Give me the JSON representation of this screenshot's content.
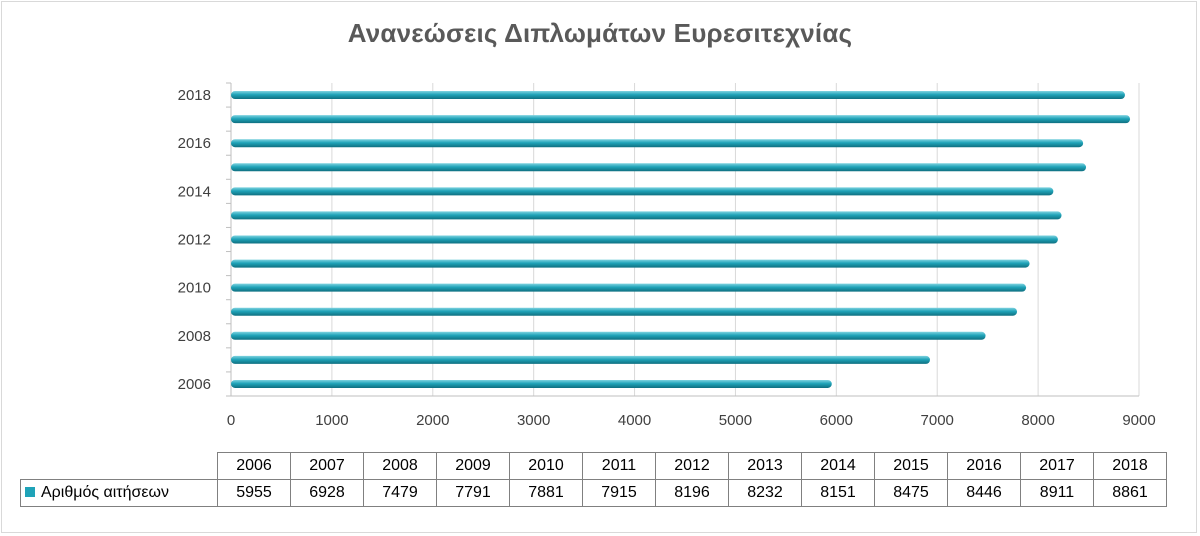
{
  "colors": {
    "bar": "#1fa3b8",
    "bar_light": "#7fd3e0",
    "bar_dark": "#0f6f80",
    "grid": "#d9d9d9",
    "axis": "#bfbfbf",
    "text": "#404040",
    "title": "#595959"
  },
  "chart_data": {
    "type": "bar",
    "orientation": "horizontal",
    "title": "Ανανεώσεις Διπλωμάτων Ευρεσιτεχνίας",
    "categories": [
      "2006",
      "2007",
      "2008",
      "2009",
      "2010",
      "2011",
      "2012",
      "2013",
      "2014",
      "2015",
      "2016",
      "2017",
      "2018"
    ],
    "series": [
      {
        "name": "Αριθμός αιτήσεων",
        "values": [
          5955,
          6928,
          7479,
          7791,
          7881,
          7915,
          8196,
          8232,
          8151,
          8475,
          8446,
          8911,
          8861
        ]
      }
    ],
    "category_axis_labels": [
      "2006",
      "2008",
      "2010",
      "2012",
      "2014",
      "2016",
      "2018"
    ],
    "value_axis": {
      "min": 0,
      "max": 9000,
      "ticks": [
        "0",
        "1000",
        "2000",
        "3000",
        "4000",
        "5000",
        "6000",
        "7000",
        "8000",
        "9000"
      ]
    },
    "grid": true,
    "legend": "data-table"
  }
}
